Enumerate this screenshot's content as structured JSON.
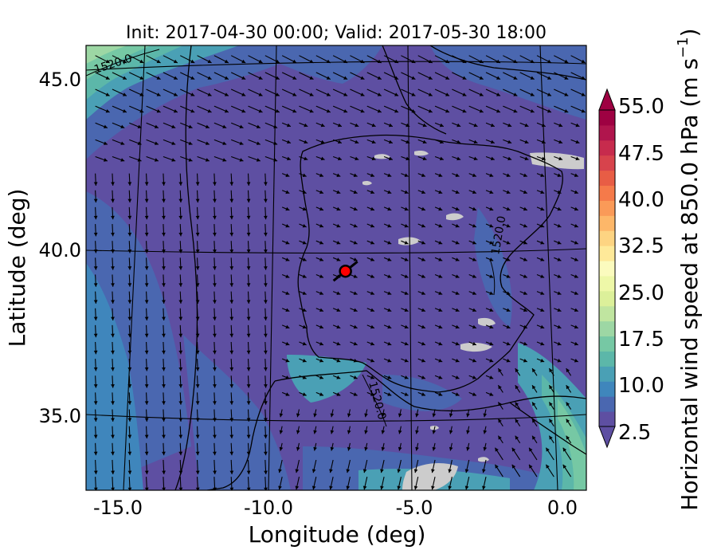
{
  "title": "Init: 2017-04-30 00:00; Valid: 2017-05-30 18:00",
  "xlabel": "Longitude (deg)",
  "ylabel": "Latitude (deg)",
  "x_ticks": [
    "-15.0",
    "-10.0",
    "-5.0",
    "0.0"
  ],
  "y_ticks": [
    "45.0",
    "40.0",
    "35.0"
  ],
  "map_extent": {
    "lon": [
      -16.0,
      0.2
    ],
    "lat": [
      32.8,
      46.0
    ]
  },
  "colorbar": {
    "label": "Horizontal wind speed at 850.0 hPa (m s",
    "label_exponent": "−1",
    "label_suffix": ")",
    "tick_labels": [
      "55.0",
      "47.5",
      "40.0",
      "32.5",
      "25.0",
      "17.5",
      "10.0",
      "2.5"
    ],
    "range": [
      2.5,
      55.0
    ],
    "step": 2.5,
    "colors": [
      "#5e4fa2",
      "#4a67b0",
      "#3f86bc",
      "#4aa0b5",
      "#5cb7a9",
      "#76c8a4",
      "#9dd7a4",
      "#c0e5a0",
      "#dcf09a",
      "#eef8a8",
      "#fbfbbe",
      "#fee999",
      "#fdd482",
      "#fdb769",
      "#fa9a58",
      "#f57a4a",
      "#e85d45",
      "#d7434c",
      "#c72b4d",
      "#b0154d",
      "#9e0142"
    ],
    "under_color": "#5e4fa2",
    "over_color": "#9e0142"
  },
  "contour_labels": [
    "1520.0",
    "1520.0",
    "1520.0"
  ],
  "station": {
    "name": "station-marker",
    "lon": -7.6,
    "lat": 39.3,
    "color": "#ff0000"
  },
  "colors": {
    "land_mask": "#cccccc",
    "field_low": "#5e4fa2",
    "field_mid": "#4a67b0",
    "field_high": "#76c8a4"
  }
}
